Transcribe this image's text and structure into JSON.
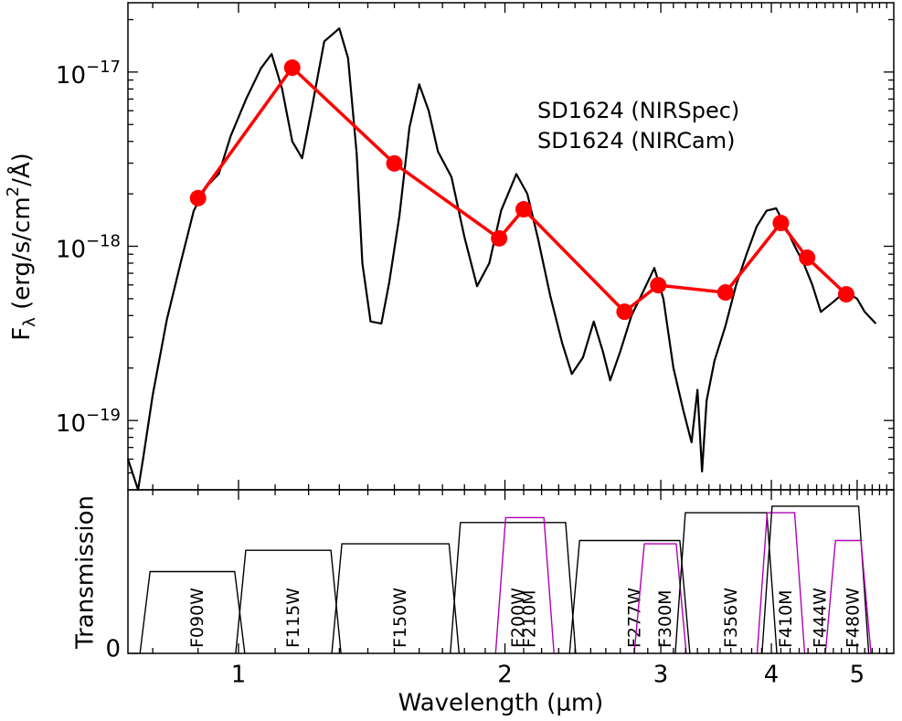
{
  "chart_data": [
    {
      "type": "line",
      "ylabel": "Fλ (erg/s/cm2/Å)",
      "xscale": "log",
      "yscale": "log",
      "xlim": [
        0.75,
        5.5
      ],
      "ylim": [
        4e-20,
        2.5e-17
      ],
      "xticks": [
        1,
        2,
        3,
        4,
        5
      ],
      "xticks_minor": [
        0.8,
        0.9,
        1.1,
        1.2,
        1.3,
        1.4,
        1.5,
        1.6,
        1.7,
        1.8,
        1.9,
        2.1,
        2.2,
        2.3,
        2.4,
        2.5,
        2.6,
        2.7,
        2.8,
        2.9,
        3.1,
        3.2,
        3.3,
        3.4,
        3.5,
        3.6,
        3.7,
        3.8,
        3.9,
        4.1,
        4.2,
        4.3,
        4.4,
        4.5,
        4.6,
        4.7,
        4.8,
        4.9,
        5.1,
        5.2,
        5.3,
        5.4
      ],
      "yticks": [
        {
          "value": 1e-19,
          "label": "10−19"
        },
        {
          "value": 1e-18,
          "label": "10−18"
        },
        {
          "value": 1e-17,
          "label": "10−17"
        }
      ],
      "yticks_minor": [
        5e-20,
        6e-20,
        7e-20,
        8e-20,
        9e-20,
        2e-19,
        3e-19,
        4e-19,
        5e-19,
        6e-19,
        7e-19,
        8e-19,
        9e-19,
        2e-18,
        3e-18,
        4e-18,
        5e-18,
        6e-18,
        7e-18,
        8e-18,
        9e-18,
        2e-17
      ],
      "legend": "upper right",
      "series": [
        {
          "name": "SD1624 (NIRSpec)",
          "color": "#000000",
          "x": [
            0.75,
            0.77,
            0.78,
            0.8,
            0.83,
            0.86,
            0.89,
            0.92,
            0.95,
            0.98,
            1.02,
            1.06,
            1.09,
            1.12,
            1.15,
            1.18,
            1.21,
            1.25,
            1.3,
            1.33,
            1.36,
            1.38,
            1.41,
            1.45,
            1.48,
            1.52,
            1.56,
            1.6,
            1.64,
            1.68,
            1.74,
            1.8,
            1.86,
            1.92,
            1.98,
            2.06,
            2.12,
            2.18,
            2.25,
            2.32,
            2.38,
            2.45,
            2.52,
            2.58,
            2.63,
            2.7,
            2.78,
            2.88,
            2.95,
            3.02,
            3.1,
            3.18,
            3.25,
            3.3,
            3.34,
            3.38,
            3.45,
            3.55,
            3.65,
            3.75,
            3.85,
            3.95,
            4.05,
            4.15,
            4.25,
            4.35,
            4.45,
            4.55,
            4.7,
            4.85,
            5.0,
            5.1,
            5.25
          ],
          "values": [
            6e-20,
            4e-20,
            6e-20,
            1.4e-19,
            3.8e-19,
            8e-19,
            1.6e-18,
            2.2e-18,
            2.6e-18,
            4.3e-18,
            7e-18,
            1.05e-17,
            1.27e-17,
            8e-18,
            4e-18,
            3.2e-18,
            6.2e-18,
            1.5e-17,
            1.78e-17,
            1.2e-17,
            3.4e-18,
            8e-19,
            3.7e-19,
            3.6e-19,
            6.2e-19,
            1.5e-18,
            4.8e-18,
            8.5e-18,
            6e-18,
            3.5e-18,
            2.5e-18,
            1.13e-18,
            5.9e-19,
            8e-19,
            1.6e-18,
            2.6e-18,
            2e-18,
            1.1e-18,
            5.2e-19,
            2.8e-19,
            1.85e-19,
            2.3e-19,
            3.7e-19,
            2.5e-19,
            1.7e-19,
            2.5e-19,
            4e-19,
            5.8e-19,
            7.5e-19,
            5e-19,
            2e-19,
            1.15e-19,
            7.5e-20,
            1.5e-19,
            5.1e-20,
            1.3e-19,
            2.2e-19,
            3.5e-19,
            6e-19,
            9e-19,
            1.3e-18,
            1.6e-18,
            1.65e-18,
            1.3e-18,
            1e-18,
            8e-19,
            6e-19,
            4.2e-19,
            4.8e-19,
            5.5e-19,
            5e-19,
            4.2e-19,
            3.6e-19
          ]
        },
        {
          "name": "SD1624 (NIRCam)",
          "color": "#ff0000",
          "markers": true,
          "x": [
            0.9,
            1.15,
            1.5,
            1.97,
            2.1,
            2.73,
            2.98,
            3.55,
            4.1,
            4.39,
            4.86
          ],
          "values": [
            1.89e-18,
            1.06e-17,
            2.99e-18,
            1.11e-18,
            1.63e-18,
            4.21e-19,
            5.98e-19,
            5.43e-19,
            1.36e-18,
            8.6e-19,
            5.3e-19
          ]
        }
      ]
    },
    {
      "type": "band",
      "ylabel": "Transmission",
      "xlabel": "Wavelength (μm)",
      "xscale": "log",
      "xlim": [
        0.75,
        5.5
      ],
      "ylim": [
        0,
        1
      ],
      "xticks": [
        1,
        2,
        3,
        4,
        5
      ],
      "xticks_minor": [
        0.8,
        0.9,
        1.1,
        1.2,
        1.3,
        1.4,
        1.5,
        1.6,
        1.7,
        1.8,
        1.9,
        2.1,
        2.2,
        2.3,
        2.4,
        2.5,
        2.6,
        2.7,
        2.8,
        2.9,
        3.1,
        3.2,
        3.3,
        3.4,
        3.5,
        3.6,
        3.7,
        3.8,
        3.9,
        4.1,
        4.2,
        4.3,
        4.4,
        4.5,
        4.6,
        4.7,
        4.8,
        4.9,
        5.1,
        5.2,
        5.3,
        5.4
      ],
      "yticks": [
        0
      ],
      "filters": [
        {
          "name": "F090W",
          "color": "#000000",
          "edges": [
            0.785,
            1.002
          ],
          "peak": 0.5
        },
        {
          "name": "F115W",
          "color": "#000000",
          "edges": [
            1.007,
            1.287
          ],
          "peak": 0.63
        },
        {
          "name": "F150W",
          "color": "#000000",
          "edges": [
            1.293,
            1.75
          ],
          "peak": 0.67
        },
        {
          "name": "F200W",
          "color": "#000000",
          "edges": [
            1.76,
            2.37
          ],
          "peak": 0.8
        },
        {
          "name": "F210M",
          "color": "#b000b8",
          "edges": [
            1.98,
            2.24
          ],
          "peak": 0.83
        },
        {
          "name": "F277W",
          "color": "#000000",
          "edges": [
            2.4,
            3.19
          ],
          "peak": 0.69
        },
        {
          "name": "F300M",
          "color": "#b000b8",
          "edges": [
            2.84,
            3.16
          ],
          "peak": 0.67
        },
        {
          "name": "F356W",
          "color": "#000000",
          "edges": [
            3.16,
            4.0
          ],
          "peak": 0.86
        },
        {
          "name": "F410M",
          "color": "#b000b8",
          "edges": [
            3.91,
            4.3
          ],
          "peak": 0.86
        },
        {
          "name": "F444W",
          "color": "#000000",
          "edges": [
            3.96,
            5.08
          ],
          "peak": 0.9
        },
        {
          "name": "F480W",
          "color": "#b000b8",
          "edges": [
            4.67,
            5.11
          ],
          "peak": 0.69
        }
      ]
    }
  ]
}
